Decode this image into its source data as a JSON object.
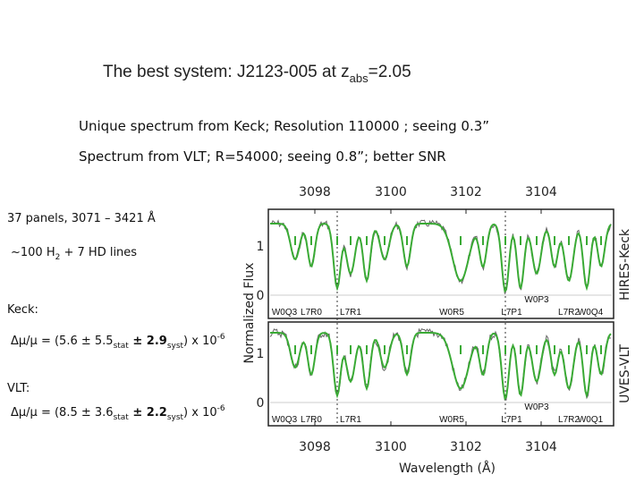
{
  "header": {
    "title": [
      "The best system: J2123-005 at z",
      "abs",
      "=2.05"
    ]
  },
  "notes": [
    "Unique spectrum from Keck; Resolution 110000 ; seeing 0.3”",
    "Spectrum from VLT; R=54000; seeing 0.8”; better SNR"
  ],
  "left": {
    "panels": "37 panels, 3071 – 3421 Å",
    "lines": [
      "~100 H",
      "2",
      " + 7 HD lines"
    ],
    "keck": {
      "label": "Keck:",
      "result": [
        "Δμ/μ = (5.6 ± 5.5",
        "stat",
        " ± 2.9",
        "syst",
        ") x 10",
        "-6"
      ]
    },
    "vlt": {
      "label": "VLT:",
      "result": [
        "Δμ/μ = (8.5 ± 3.6",
        "stat",
        " ± 2.2",
        "syst",
        ") x 10",
        "-6"
      ]
    }
  },
  "figure": {
    "x_ticks_top": [
      "3098",
      "3100",
      "3102",
      "3104"
    ],
    "x_ticks_bottom": [
      "3098",
      "3100",
      "3102",
      "3104"
    ],
    "x_label": "Wavelength (Å)",
    "y_label": "Normalized Flux",
    "y_ticks_top": [
      "1",
      "0"
    ],
    "y_ticks_bottom": [
      "1",
      "0"
    ],
    "panel_labels": [
      "HIRES-Keck",
      "UVES-VLT"
    ],
    "top_lines": [
      "W0Q3",
      "L7R0",
      "L7R1",
      "W0R5",
      "L7P1",
      "L7R2",
      "W0Q4",
      "W0P3"
    ],
    "bottom_lines": [
      "W0Q3",
      "L7R0",
      "L7R1",
      "W0R5",
      "L7P1",
      "L7R2",
      "W0Q1",
      "W0P3"
    ]
  }
}
